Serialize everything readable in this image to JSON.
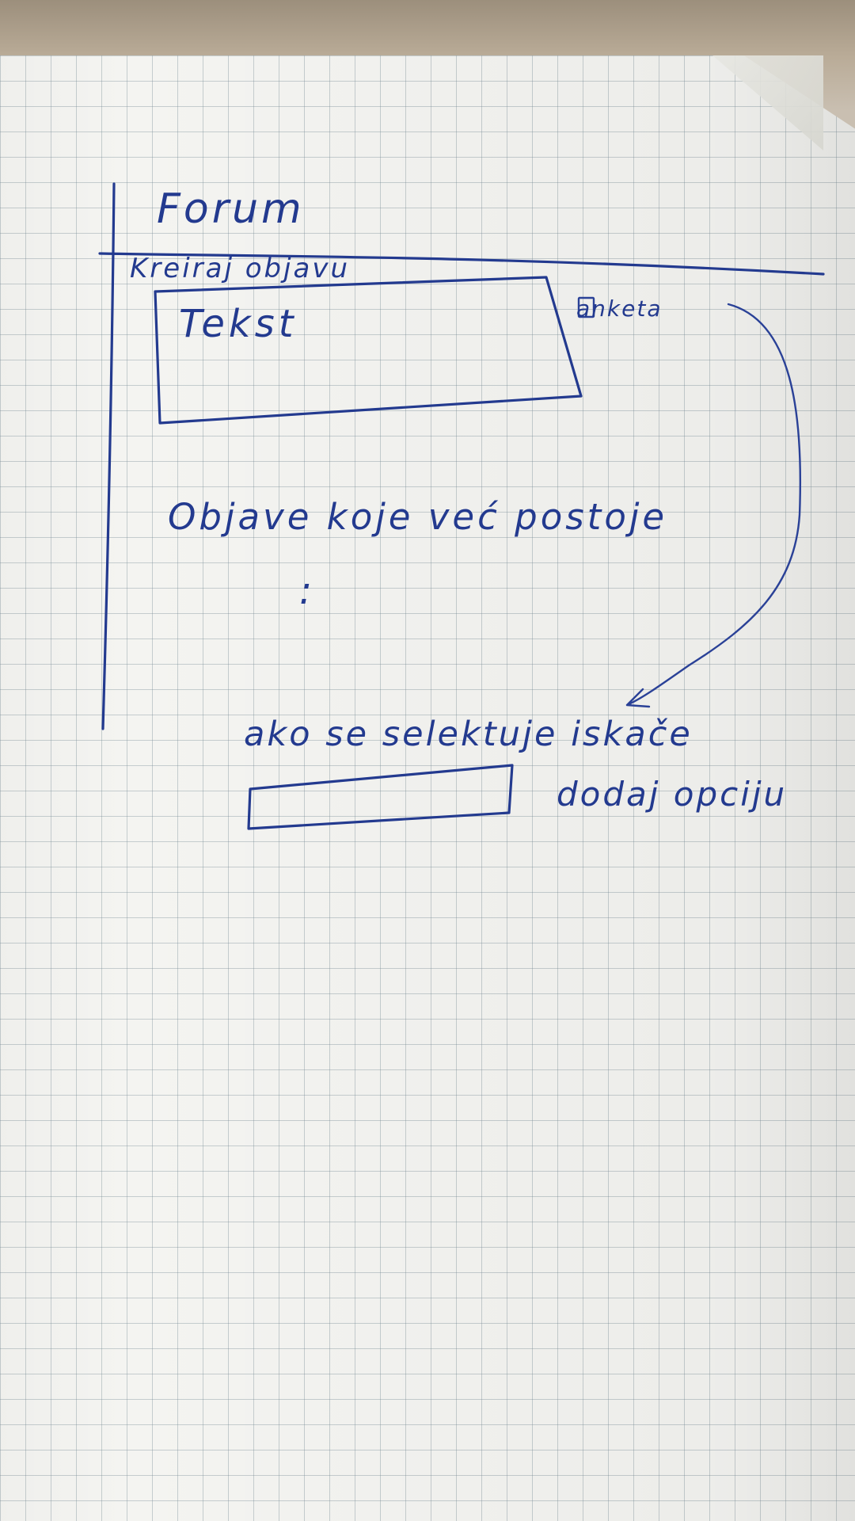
{
  "sketch": {
    "title": "Forum",
    "create_post_label": "Kreiraj objavu",
    "text_box_placeholder": "Tekst",
    "poll_checkbox_label": "anketa",
    "existing_posts_label": "Objave koje već postoje",
    "ellipsis": ":",
    "select_note": "ako se selektuje iskače",
    "add_option_note": "dodaj opciju"
  },
  "colors": {
    "ink": "#233a8f",
    "paper": "#f4f4f1",
    "grid": "#78909a"
  }
}
